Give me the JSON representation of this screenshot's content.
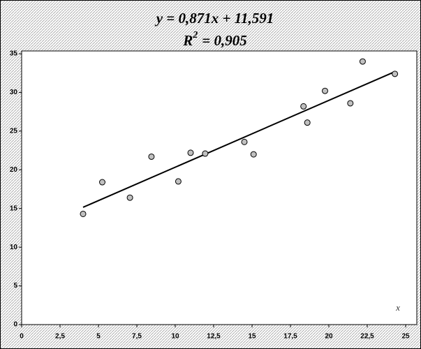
{
  "chart_data": {
    "type": "scatter",
    "title": "y = 0,871x + 11,591",
    "subtitle": [
      "R",
      "2",
      "= 0,905"
    ],
    "x_label": "x",
    "x": [
      4.0,
      5.25,
      7.05,
      8.45,
      10.2,
      11.0,
      11.95,
      14.5,
      15.1,
      18.35,
      18.6,
      19.75,
      21.4,
      22.2,
      24.3
    ],
    "values": [
      14.3,
      18.4,
      16.4,
      21.7,
      18.5,
      22.2,
      22.1,
      23.6,
      22.0,
      28.2,
      26.1,
      30.2,
      28.6,
      34.0,
      32.4
    ],
    "color": "#c0c0c0",
    "trendline": true,
    "xlim": [
      0,
      25
    ],
    "xticks": [
      0,
      {
        "value": 2.5,
        "label": "2,5"
      },
      5,
      {
        "value": 7.5,
        "label": "7,5"
      },
      10,
      {
        "value": 12.5,
        "label": "12,5"
      },
      15,
      {
        "value": 17.5,
        "label": "17,5"
      },
      20,
      {
        "value": 22.5,
        "label": "22,5"
      },
      25
    ],
    "ylim": [
      0,
      35
    ],
    "yticks": [
      0,
      5,
      10,
      15,
      20,
      25,
      30,
      35
    ],
    "grid": false
  }
}
